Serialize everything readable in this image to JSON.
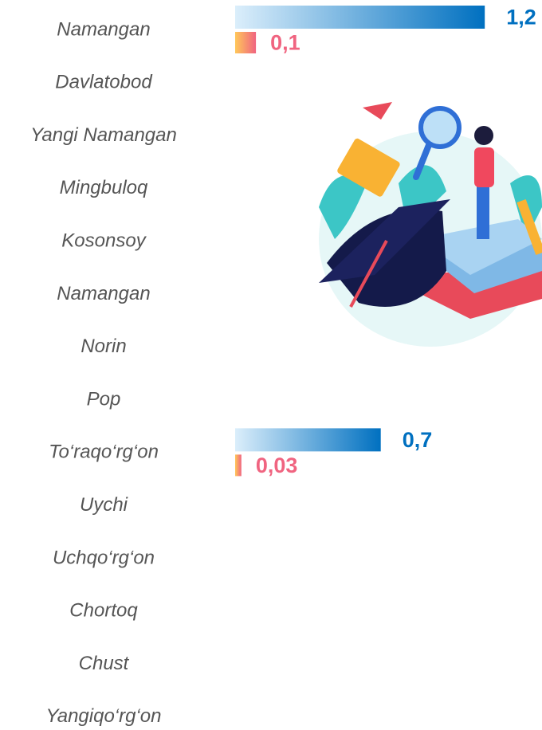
{
  "chart_data": {
    "type": "bar",
    "orientation": "horizontal",
    "categories": [
      "Namangan",
      "Davlatobod",
      "Yangi Namangan",
      "Mingbuloq",
      "Kosonsoy",
      "Namangan",
      "Norin",
      "Pop",
      "To‘raqo‘rg‘on",
      "Uychi",
      "Uchqo‘rg‘on",
      "Chortoq",
      "Chust",
      "Yangiqo‘rg‘on"
    ],
    "series": [
      {
        "color": "#0070c0",
        "values": [
          1.2,
          null,
          null,
          null,
          null,
          null,
          null,
          null,
          0.7,
          null,
          null,
          null,
          null,
          null
        ],
        "value_labels": [
          "1,2",
          null,
          null,
          null,
          null,
          null,
          null,
          null,
          "0,7",
          null,
          null,
          null,
          null,
          null
        ]
      },
      {
        "color": "#f06480",
        "values": [
          0.1,
          null,
          null,
          null,
          null,
          null,
          null,
          null,
          0.03,
          null,
          null,
          null,
          null,
          null
        ],
        "value_labels": [
          "0,1",
          null,
          null,
          null,
          null,
          null,
          null,
          null,
          "0,03",
          null,
          null,
          null,
          null,
          null
        ]
      }
    ]
  }
}
